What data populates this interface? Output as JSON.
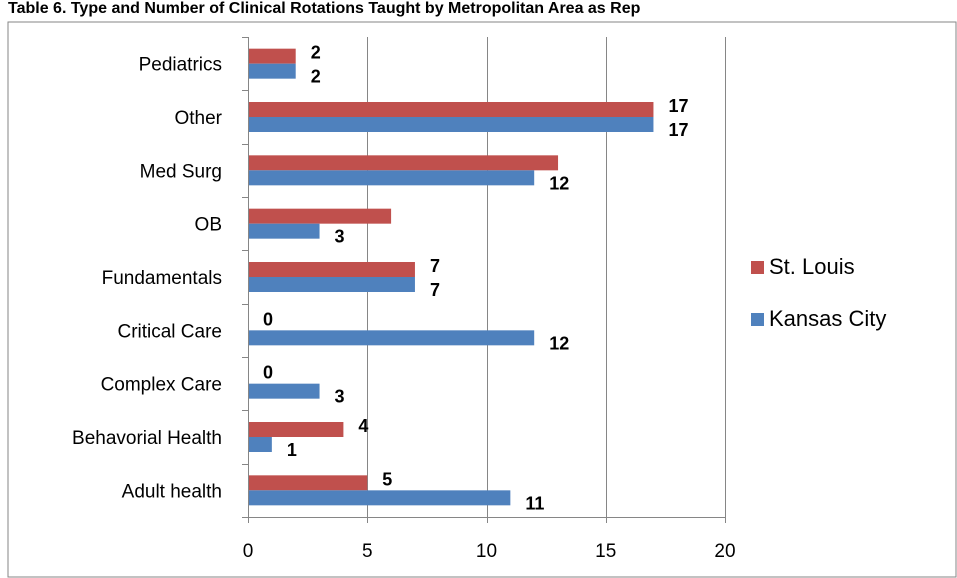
{
  "chart_data": {
    "type": "bar",
    "orientation": "horizontal",
    "title": "Table 6. Type and Number of Clinical Rotations Taught by Metropolitan Area as Rep",
    "categories": [
      "Adult health",
      "Behavorial Health",
      "Complex Care",
      "Critical Care",
      "Fundamentals",
      "OB",
      "Med Surg",
      "Other",
      "Pediatrics"
    ],
    "series": [
      {
        "name": "Kansas City",
        "color": "#4F81BD",
        "values": [
          11,
          1,
          3,
          12,
          7,
          3,
          12,
          17,
          2
        ],
        "labels": [
          "11",
          "1",
          "3",
          "12",
          "7",
          "3",
          "12",
          "17",
          "2"
        ]
      },
      {
        "name": "St. Louis",
        "color": "#C0504D",
        "values": [
          5,
          4,
          0,
          0,
          7,
          6,
          13,
          17,
          2
        ],
        "labels": [
          "5",
          "4",
          "0",
          "0",
          "7",
          "",
          "",
          "17",
          "2"
        ]
      }
    ],
    "xlim": [
      0,
      20
    ],
    "xticks": [
      0,
      5,
      10,
      15,
      20
    ],
    "grid": "vertical",
    "legend": "right",
    "legend_order": [
      "St. Louis",
      "Kansas City"
    ]
  }
}
